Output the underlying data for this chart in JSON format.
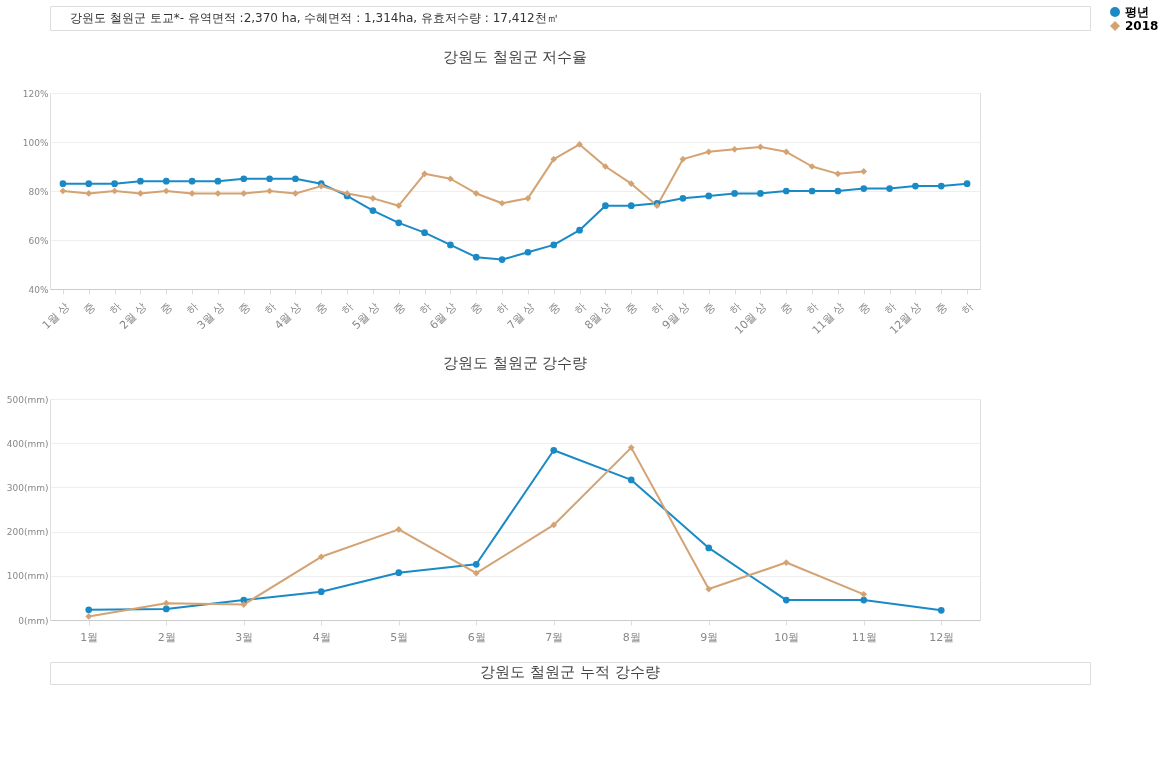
{
  "chart_data": [
    {
      "type": "line",
      "title": "강원도 철원군 저수율",
      "annotations": [
        "강원도 철원군 토교*- 유역면적 :2,370 ha, 수혜면적 : 1,314ha, 유효저수량 : 17,412천㎥"
      ],
      "categories": [
        "1월 상",
        "중",
        "하",
        "2월 상",
        "중",
        "하",
        "3월 상",
        "중",
        "하",
        "4월 상",
        "중",
        "하",
        "5월 상",
        "중",
        "하",
        "6월 상",
        "중",
        "하",
        "7월 상",
        "중",
        "하",
        "8월 상",
        "중",
        "하",
        "9월 상",
        "중",
        "하",
        "10월 상",
        "중",
        "하",
        "11월 상",
        "중",
        "하",
        "12월 상",
        "중",
        "하"
      ],
      "series": [
        {
          "name": "평년",
          "color": "#1a8ac6",
          "marker": "circle",
          "values": [
            83,
            83,
            83,
            84,
            84,
            84,
            84,
            85,
            85,
            85,
            83,
            78,
            72,
            67,
            63,
            58,
            53,
            52,
            55,
            58,
            64,
            74,
            74,
            75,
            77,
            78,
            79,
            79,
            80,
            80,
            80,
            81,
            81,
            82,
            82,
            83
          ]
        },
        {
          "name": "2018",
          "color": "#d4a373",
          "marker": "diamond",
          "values": [
            80,
            79,
            80,
            79,
            80,
            79,
            79,
            79,
            80,
            79,
            82,
            79,
            77,
            74,
            87,
            85,
            79,
            75,
            77,
            93,
            99,
            90,
            83,
            74,
            93,
            96,
            97,
            98,
            96,
            90,
            87,
            88,
            null,
            null,
            null,
            null
          ]
        }
      ],
      "ylim": [
        40,
        120
      ],
      "yticks": [
        {
          "value": 40,
          "label": "40%"
        },
        {
          "value": 60,
          "label": "60%"
        },
        {
          "value": 80,
          "label": "80%"
        },
        {
          "value": 100,
          "label": "100%"
        },
        {
          "value": 120,
          "label": "120%"
        }
      ],
      "grid": "y",
      "legend": "right",
      "line_style": "solid"
    },
    {
      "type": "line",
      "title": "강원도 철원군 강수량",
      "categories": [
        "1월",
        "2월",
        "3월",
        "4월",
        "5월",
        "6월",
        "7월",
        "8월",
        "9월",
        "10월",
        "11월",
        "12월"
      ],
      "series": [
        {
          "name": "평년",
          "color": "#1a8ac6",
          "marker": "circle",
          "values": [
            23,
            25,
            45,
            64,
            107,
            126,
            384,
            317,
            163,
            45,
            45,
            22
          ]
        },
        {
          "name": "2018",
          "color": "#d4a373",
          "marker": "diamond",
          "values": [
            8,
            38,
            35,
            143,
            205,
            106,
            215,
            390,
            70,
            130,
            58,
            null
          ]
        }
      ],
      "ylim": [
        0,
        500
      ],
      "yticks": [
        {
          "value": 0,
          "label": "0(mm)"
        },
        {
          "value": 100,
          "label": "100(mm)"
        },
        {
          "value": 200,
          "label": "200(mm)"
        },
        {
          "value": 300,
          "label": "300(mm)"
        },
        {
          "value": 400,
          "label": "400(mm)"
        },
        {
          "value": 500,
          "label": "500(mm)"
        }
      ],
      "grid": "y",
      "legend": "right",
      "line_style": "solid"
    },
    {
      "type": "other",
      "title": "강원도 철원군 누적 강수량"
    }
  ]
}
